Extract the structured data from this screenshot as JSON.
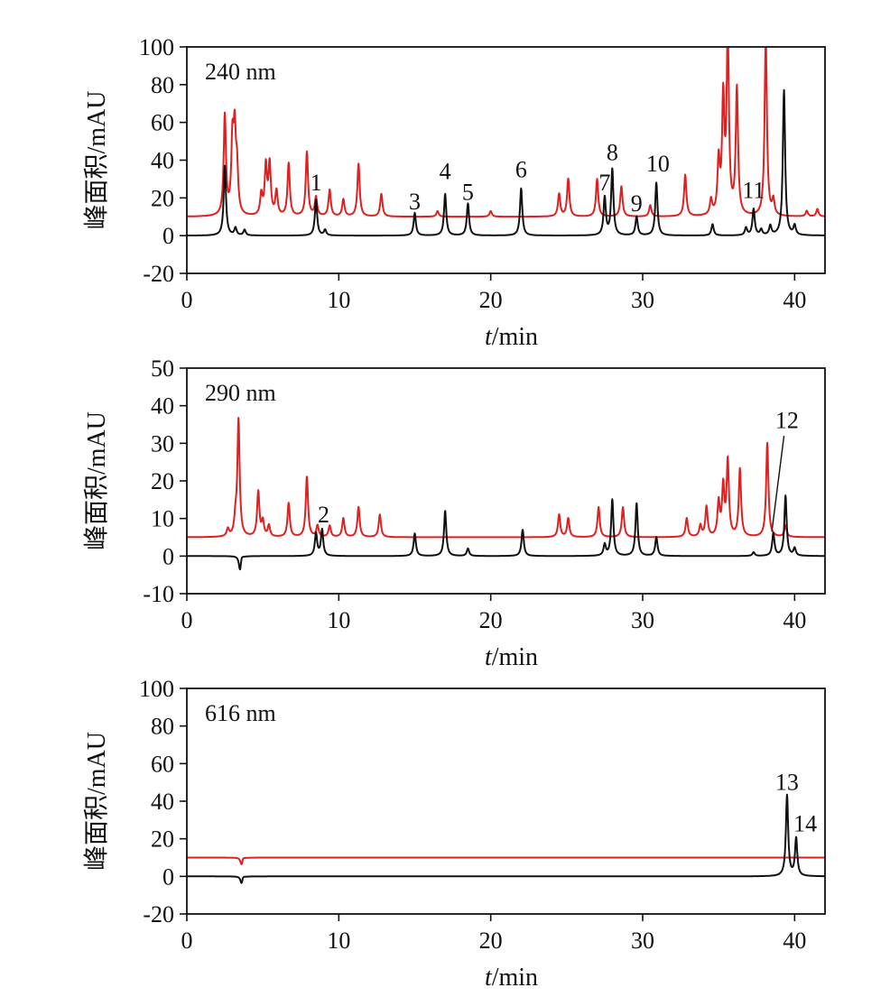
{
  "colors": {
    "red": "#e02020",
    "black": "#111111"
  },
  "chart_data": [
    {
      "type": "line",
      "panel_label": "240 nm",
      "ylabel": "峰面积/mAU",
      "xlabel_var": "t",
      "xlabel_unit": "/min",
      "xlim": [
        0,
        42
      ],
      "ylim": [
        -20,
        100
      ],
      "xticks": [
        0,
        10,
        20,
        30,
        40
      ],
      "yticks": [
        -20,
        0,
        20,
        40,
        60,
        80,
        100
      ],
      "series": [
        {
          "color": "#e02020",
          "baseline": 10,
          "peaks": [
            [
              2.5,
              53
            ],
            [
              3.0,
              37
            ],
            [
              3.15,
              40
            ],
            [
              3.3,
              22
            ],
            [
              4.9,
              11
            ],
            [
              5.2,
              26
            ],
            [
              5.45,
              27
            ],
            [
              5.9,
              13
            ],
            [
              6.7,
              28
            ],
            [
              7.9,
              34
            ],
            [
              8.5,
              10
            ],
            [
              9.4,
              14
            ],
            [
              10.3,
              9
            ],
            [
              11.3,
              28
            ],
            [
              12.8,
              12
            ],
            [
              16.5,
              3
            ],
            [
              20.0,
              3
            ],
            [
              24.5,
              12
            ],
            [
              25.1,
              20
            ],
            [
              27.0,
              20
            ],
            [
              28.6,
              16
            ],
            [
              30.5,
              6
            ],
            [
              32.8,
              22
            ],
            [
              34.5,
              8
            ],
            [
              35.0,
              28
            ],
            [
              35.3,
              60
            ],
            [
              35.6,
              95
            ],
            [
              36.2,
              67
            ],
            [
              38.1,
              95
            ],
            [
              38.6,
              8
            ],
            [
              40.8,
              3
            ],
            [
              41.5,
              4
            ]
          ]
        },
        {
          "color": "#111111",
          "baseline": 0,
          "peaks": [
            [
              2.5,
              37
            ],
            [
              3.2,
              4
            ],
            [
              3.8,
              3
            ],
            [
              8.5,
              19
            ],
            [
              9.1,
              3
            ],
            [
              15.0,
              12
            ],
            [
              17.0,
              22
            ],
            [
              18.5,
              17
            ],
            [
              22.0,
              25
            ],
            [
              27.5,
              20
            ],
            [
              28.0,
              35
            ],
            [
              29.6,
              10
            ],
            [
              30.9,
              28
            ],
            [
              34.6,
              6
            ],
            [
              36.8,
              4
            ],
            [
              37.3,
              14
            ],
            [
              37.8,
              3
            ],
            [
              38.4,
              5
            ],
            [
              39.3,
              77
            ],
            [
              40.0,
              5
            ]
          ]
        }
      ],
      "annotations": [
        {
          "label": "1",
          "x": 8.5,
          "y": 24
        },
        {
          "label": "3",
          "x": 15.0,
          "y": 14
        },
        {
          "label": "4",
          "x": 17.0,
          "y": 30
        },
        {
          "label": "5",
          "x": 18.5,
          "y": 19
        },
        {
          "label": "6",
          "x": 22.0,
          "y": 31
        },
        {
          "label": "7",
          "x": 27.5,
          "y": 24
        },
        {
          "label": "8",
          "x": 28.0,
          "y": 40
        },
        {
          "label": "9",
          "x": 29.6,
          "y": 13
        },
        {
          "label": "10",
          "x": 31.0,
          "y": 34
        },
        {
          "label": "11",
          "x": 37.3,
          "y": 20
        }
      ]
    },
    {
      "type": "line",
      "panel_label": "290 nm",
      "ylabel": "峰面积/mAU",
      "xlabel_var": "t",
      "xlabel_unit": "/min",
      "xlim": [
        0,
        42
      ],
      "ylim": [
        -10,
        50
      ],
      "xticks": [
        0,
        10,
        20,
        30,
        40
      ],
      "yticks": [
        -10,
        0,
        10,
        20,
        30,
        40,
        50
      ],
      "series": [
        {
          "color": "#e02020",
          "baseline": 5,
          "peaks": [
            [
              2.7,
              2
            ],
            [
              3.2,
              4
            ],
            [
              3.4,
              31
            ],
            [
              4.7,
              12
            ],
            [
              5.0,
              4
            ],
            [
              5.4,
              3
            ],
            [
              6.7,
              9
            ],
            [
              7.9,
              16
            ],
            [
              8.6,
              3
            ],
            [
              9.4,
              3
            ],
            [
              10.3,
              5
            ],
            [
              11.3,
              8
            ],
            [
              12.7,
              6
            ],
            [
              24.5,
              6
            ],
            [
              25.1,
              5
            ],
            [
              27.1,
              8
            ],
            [
              28.7,
              8
            ],
            [
              32.9,
              5
            ],
            [
              33.8,
              3
            ],
            [
              34.2,
              8
            ],
            [
              35.0,
              9
            ],
            [
              35.3,
              13
            ],
            [
              35.6,
              20
            ],
            [
              36.4,
              18
            ],
            [
              38.2,
              25
            ],
            [
              39.4,
              3
            ]
          ]
        },
        {
          "color": "#111111",
          "baseline": 0,
          "peaks": [
            [
              3.5,
              -4
            ],
            [
              3.6,
              1
            ],
            [
              8.5,
              6
            ],
            [
              8.9,
              7
            ],
            [
              15.0,
              6
            ],
            [
              17.0,
              12
            ],
            [
              18.5,
              2
            ],
            [
              22.1,
              7
            ],
            [
              27.5,
              3
            ],
            [
              28.0,
              15
            ],
            [
              29.6,
              14
            ],
            [
              30.9,
              5
            ],
            [
              37.3,
              1
            ],
            [
              38.6,
              6
            ],
            [
              39.4,
              16
            ],
            [
              40.0,
              2
            ]
          ]
        }
      ],
      "annotations": [
        {
          "label": "2",
          "x": 9.0,
          "y": 9
        },
        {
          "label": "12",
          "x": 39.5,
          "y": 34
        }
      ]
    },
    {
      "type": "line",
      "panel_label": "616 nm",
      "ylabel": "峰面积/mAU",
      "xlabel_var": "t",
      "xlabel_unit": "/min",
      "xlim": [
        0,
        42
      ],
      "ylim": [
        -20,
        100
      ],
      "xticks": [
        0,
        10,
        20,
        30,
        40
      ],
      "yticks": [
        -20,
        0,
        20,
        40,
        60,
        80,
        100
      ],
      "series": [
        {
          "color": "#e02020",
          "baseline": 10,
          "peaks": [
            [
              3.6,
              -4
            ],
            [
              3.7,
              1
            ]
          ]
        },
        {
          "color": "#111111",
          "baseline": 0,
          "peaks": [
            [
              3.6,
              -4
            ],
            [
              3.7,
              1
            ],
            [
              39.5,
              43
            ],
            [
              40.1,
              20
            ]
          ]
        }
      ],
      "annotations": [
        {
          "label": "13",
          "x": 39.5,
          "y": 46
        },
        {
          "label": "14",
          "x": 40.7,
          "y": 24
        }
      ]
    }
  ]
}
